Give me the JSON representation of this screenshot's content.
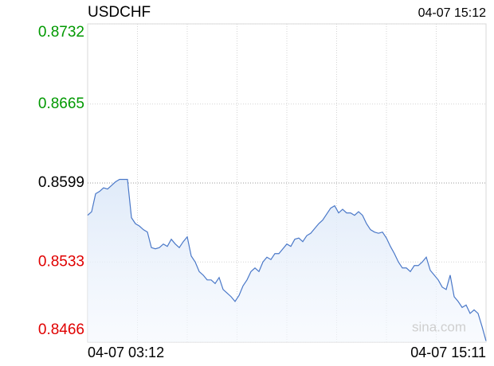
{
  "chart_data": {
    "type": "line",
    "title": "USDCHF",
    "timestamp": "04-07 15:12",
    "watermark": "sina.com",
    "categories": [
      "04-07 03:12",
      null,
      null,
      null,
      null,
      null,
      null,
      null,
      null,
      null,
      null,
      null,
      null,
      null,
      null,
      null,
      null,
      null,
      null,
      null,
      null,
      null,
      null,
      null,
      null,
      null,
      null,
      null,
      null,
      null,
      null,
      null,
      null,
      null,
      null,
      null,
      null,
      null,
      null,
      null,
      null,
      null,
      null,
      null,
      null,
      null,
      null,
      null,
      null,
      null,
      null,
      null,
      null,
      null,
      null,
      null,
      null,
      null,
      null,
      null,
      null,
      null,
      null,
      null,
      null,
      null,
      null,
      null,
      null,
      null,
      null,
      null,
      null,
      null,
      null,
      null,
      null,
      null,
      null,
      null,
      null,
      null,
      null,
      null,
      null,
      null,
      null,
      null,
      null,
      null,
      null,
      null,
      null,
      null,
      null,
      null,
      null,
      null,
      null,
      null,
      "04-07 15:11"
    ],
    "series": [
      {
        "name": "USDCHF",
        "color": "#4a78c8",
        "values": [
          0.8572,
          0.8575,
          0.859,
          0.8592,
          0.8595,
          0.8594,
          0.8597,
          0.86,
          0.8602,
          0.8602,
          0.8602,
          0.857,
          0.8565,
          0.8563,
          0.856,
          0.8558,
          0.8545,
          0.8544,
          0.8545,
          0.8548,
          0.8546,
          0.8552,
          0.8548,
          0.8545,
          0.855,
          0.8554,
          0.8538,
          0.8533,
          0.8525,
          0.8522,
          0.8518,
          0.8518,
          0.8515,
          0.852,
          0.851,
          0.8507,
          0.8504,
          0.85,
          0.8505,
          0.8513,
          0.8518,
          0.8525,
          0.8528,
          0.8525,
          0.8533,
          0.8537,
          0.8535,
          0.854,
          0.854,
          0.8544,
          0.8548,
          0.8546,
          0.8552,
          0.8553,
          0.855,
          0.8555,
          0.8557,
          0.8561,
          0.8565,
          0.8568,
          0.8573,
          0.8578,
          0.858,
          0.8574,
          0.8577,
          0.8574,
          0.8574,
          0.8572,
          0.8575,
          0.8572,
          0.8565,
          0.856,
          0.8558,
          0.8557,
          0.8558,
          0.8553,
          0.8546,
          0.854,
          0.8533,
          0.8528,
          0.8528,
          0.8525,
          0.853,
          0.853,
          0.8533,
          0.8537,
          0.8526,
          0.8522,
          0.8518,
          0.8512,
          0.851,
          0.8522,
          0.8504,
          0.85,
          0.8495,
          0.8497,
          0.849,
          0.8493,
          0.849,
          0.8479,
          0.8467
        ]
      }
    ],
    "ylim": [
      0.8466,
      0.8732
    ],
    "yticks": [
      0.8466,
      0.8533,
      0.8599,
      0.8665,
      0.8732
    ],
    "ytick_colors": [
      "#e00000",
      "#e00000",
      "#000000",
      "#009900",
      "#009900"
    ],
    "grid": true
  }
}
